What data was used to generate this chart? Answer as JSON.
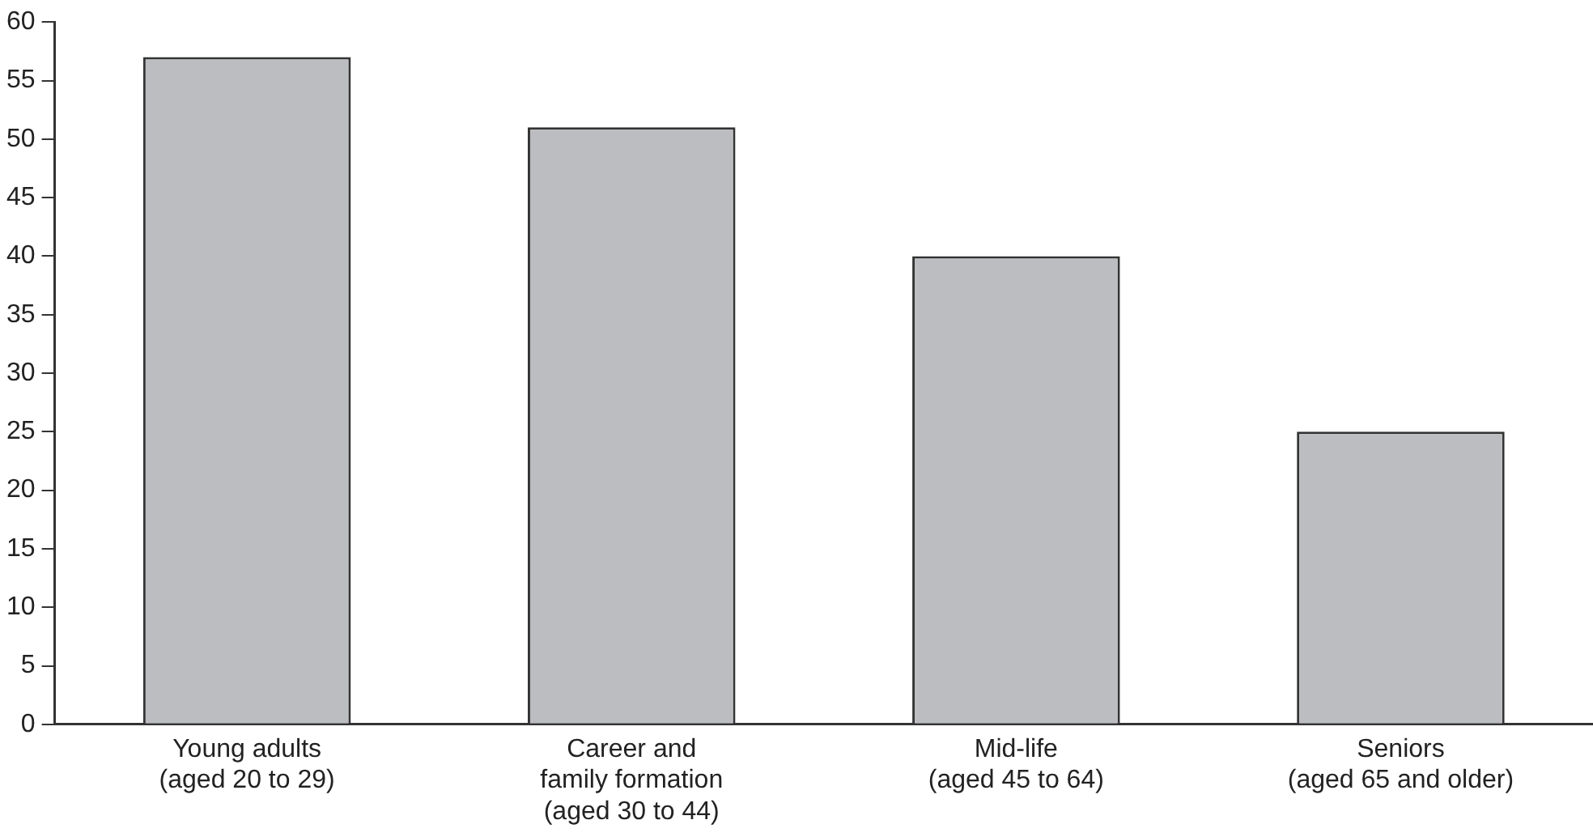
{
  "chart_data": {
    "type": "bar",
    "categories": [
      "Young adults\n(aged 20 to 29)",
      "Career and\nfamily formation\n(aged 30 to 44)",
      "Mid-life\n(aged 45 to 64)",
      "Seniors\n(aged 65 and older)"
    ],
    "values": [
      57,
      51,
      40,
      25
    ],
    "color": "#bcbdc1",
    "ylim": [
      0,
      60
    ],
    "yticks": [
      0,
      5,
      10,
      15,
      20,
      25,
      30,
      35,
      40,
      45,
      50,
      55,
      60
    ],
    "grid": false,
    "legend": false
  }
}
